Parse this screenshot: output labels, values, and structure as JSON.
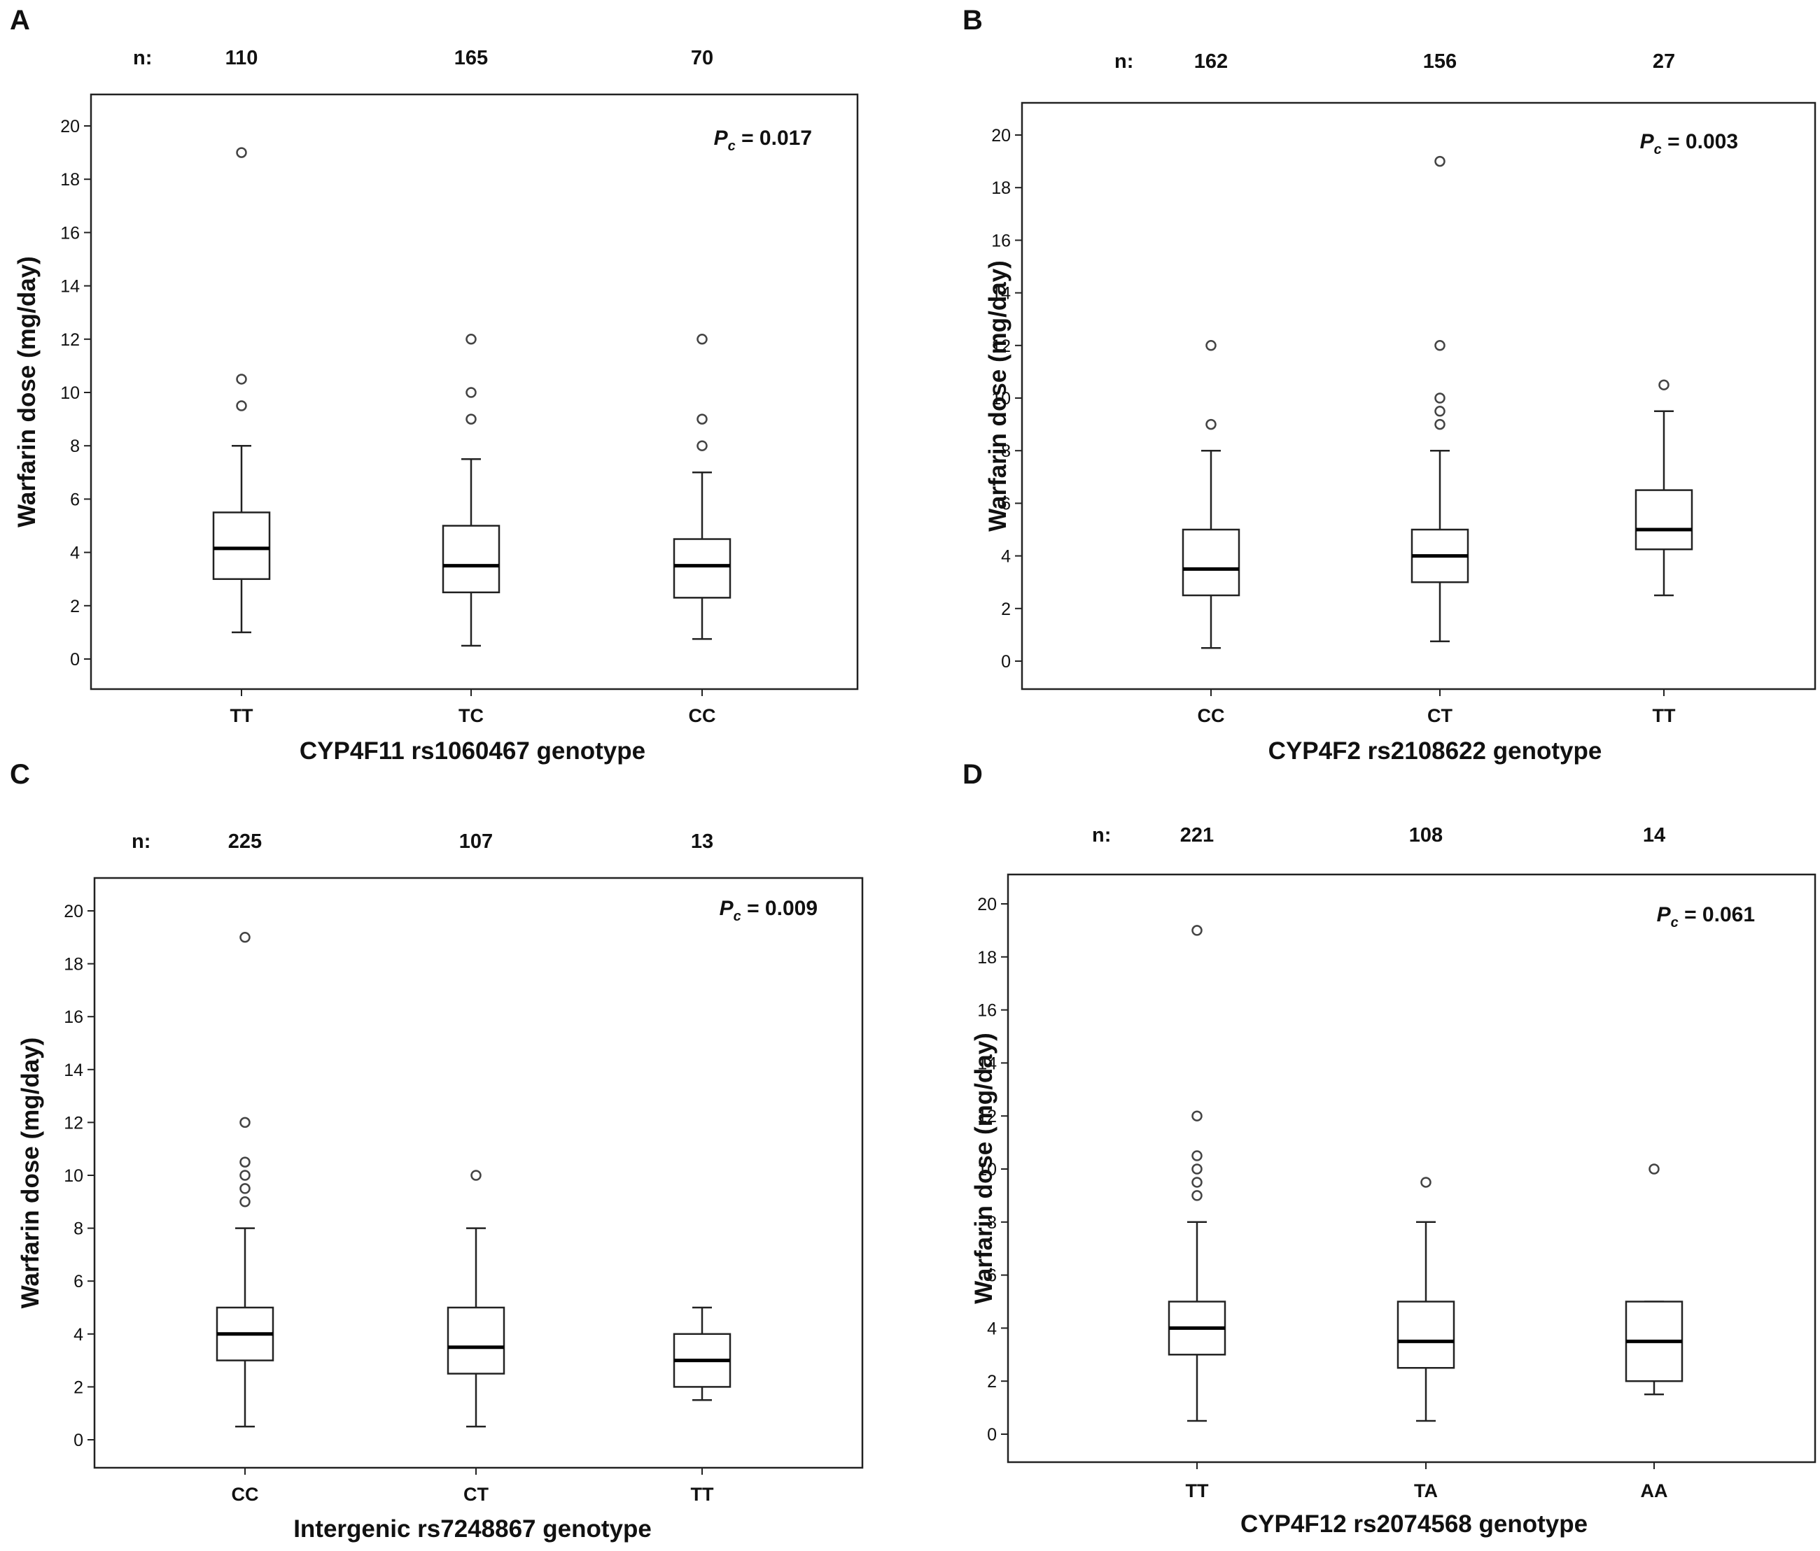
{
  "chart_data": [
    {
      "panel": "A",
      "type": "box",
      "n_label": "n:",
      "categories": [
        "TT",
        "TC",
        "CC"
      ],
      "n": [
        "110",
        "165",
        "70"
      ],
      "xlabel": "CYP4F11 rs1060467 genotype",
      "ylabel": "Warfarin dose (mg/day)",
      "p_symbol": "P",
      "p_sub": "c",
      "p_text": "= 0.017",
      "yticks": [
        0,
        2,
        4,
        6,
        8,
        10,
        12,
        14,
        16,
        18,
        20
      ],
      "ylim": [
        -1,
        21
      ],
      "boxes": [
        {
          "min": 1.0,
          "q1": 3.0,
          "median": 4.15,
          "q3": 5.5,
          "max": 8.0,
          "outliers": [
            9.5,
            10.5,
            19
          ]
        },
        {
          "min": 0.5,
          "q1": 2.5,
          "median": 3.5,
          "q3": 5.0,
          "max": 7.5,
          "outliers": [
            9,
            10,
            12
          ]
        },
        {
          "min": 0.75,
          "q1": 2.3,
          "median": 3.5,
          "q3": 4.5,
          "max": 7.0,
          "outliers": [
            8,
            9,
            12
          ]
        }
      ]
    },
    {
      "panel": "B",
      "type": "box",
      "n_label": "n:",
      "categories": [
        "CC",
        "CT",
        "TT"
      ],
      "n": [
        "162",
        "156",
        "27"
      ],
      "xlabel": "CYP4F2 rs2108622 genotype",
      "ylabel": "Warfarin dose (mg/day)",
      "p_symbol": "P",
      "p_sub": "c",
      "p_text": "= 0.003",
      "yticks": [
        0,
        2,
        4,
        6,
        8,
        10,
        12,
        14,
        16,
        18,
        20
      ],
      "ylim": [
        -1,
        21
      ],
      "boxes": [
        {
          "min": 0.5,
          "q1": 2.5,
          "median": 3.5,
          "q3": 5.0,
          "max": 8.0,
          "outliers": [
            9,
            12
          ]
        },
        {
          "min": 0.75,
          "q1": 3.0,
          "median": 4.0,
          "q3": 5.0,
          "max": 8.0,
          "outliers": [
            9,
            9.5,
            10,
            12,
            19
          ]
        },
        {
          "min": 2.5,
          "q1": 4.25,
          "median": 5.0,
          "q3": 6.5,
          "max": 9.5,
          "outliers": [
            10.5
          ]
        }
      ]
    },
    {
      "panel": "C",
      "type": "box",
      "n_label": "n:",
      "categories": [
        "CC",
        "CT",
        "TT"
      ],
      "n": [
        "225",
        "107",
        "13"
      ],
      "xlabel": "Intergenic rs7248867 genotype",
      "ylabel": "Warfarin dose (mg/day)",
      "p_symbol": "P",
      "p_sub": "c",
      "p_text": "= 0.009",
      "yticks": [
        0,
        2,
        4,
        6,
        8,
        10,
        12,
        14,
        16,
        18,
        20
      ],
      "ylim": [
        -1,
        21
      ],
      "boxes": [
        {
          "min": 0.5,
          "q1": 3.0,
          "median": 4.0,
          "q3": 5.0,
          "max": 8.0,
          "outliers": [
            9,
            9.5,
            10,
            10.5,
            12,
            19
          ]
        },
        {
          "min": 0.5,
          "q1": 2.5,
          "median": 3.5,
          "q3": 5.0,
          "max": 8.0,
          "outliers": [
            10
          ]
        },
        {
          "min": 1.5,
          "q1": 2.0,
          "median": 3.0,
          "q3": 4.0,
          "max": 5.0,
          "outliers": []
        }
      ]
    },
    {
      "panel": "D",
      "type": "box",
      "n_label": "n:",
      "categories": [
        "TT",
        "TA",
        "AA"
      ],
      "n": [
        "221",
        "108",
        "14"
      ],
      "xlabel": "CYP4F12 rs2074568 genotype",
      "ylabel": "Warfarin dose (mg/day)",
      "p_symbol": "P",
      "p_sub": "c",
      "p_text": "= 0.061",
      "yticks": [
        0,
        2,
        4,
        6,
        8,
        10,
        12,
        14,
        16,
        18,
        20
      ],
      "ylim": [
        -1,
        21
      ],
      "boxes": [
        {
          "min": 0.5,
          "q1": 3.0,
          "median": 4.0,
          "q3": 5.0,
          "max": 8.0,
          "outliers": [
            9,
            9.5,
            10,
            10.5,
            12,
            19
          ]
        },
        {
          "min": 0.5,
          "q1": 2.5,
          "median": 3.5,
          "q3": 5.0,
          "max": 8.0,
          "outliers": [
            9.5
          ]
        },
        {
          "min": 1.5,
          "q1": 2.0,
          "median": 3.5,
          "q3": 5.0,
          "max": 5.0,
          "outliers": [
            10
          ]
        }
      ]
    }
  ]
}
